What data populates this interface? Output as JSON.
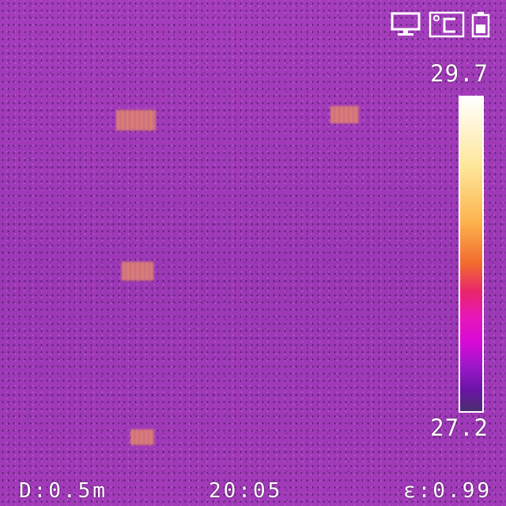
{
  "scale": {
    "max_label": "29.7",
    "min_label": "27.2",
    "max_value": 29.7,
    "min_value": 27.2
  },
  "status": {
    "distance": "D:0.5m",
    "time": "20:05",
    "emissivity": "ε:0.99"
  },
  "icons": [
    "monitor-icon",
    "celsius-unit-icon",
    "battery-icon"
  ],
  "colors": {
    "background": "#a03ab8",
    "hot_spot": "#e58a6a",
    "text": "#ffffff",
    "palette": [
      "#ffffff",
      "#fde79a",
      "#fcb24d",
      "#f16a2f",
      "#e9256d",
      "#e717b9",
      "#9b18c8",
      "#4a2e70"
    ]
  }
}
